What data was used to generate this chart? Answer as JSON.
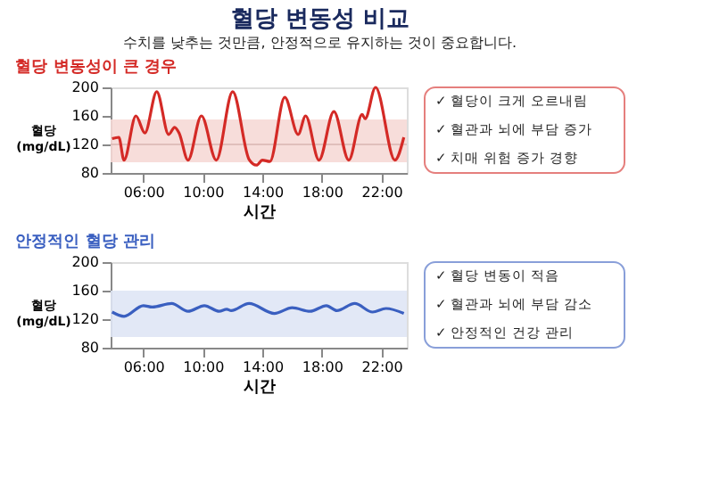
{
  "chart_data": [
    {
      "type": "other",
      "title": "혈당 변동성 비교",
      "subtitle": "수치를 낮추는 것만큼, 안정적으로 유지하는 것이 중요합니다."
    },
    {
      "type": "line",
      "title": "혈당 변동성이 큰 경우",
      "xlabel": "시간",
      "ylabel": "혈당 (mg/dL)",
      "xlim": [
        3.8,
        23.7
      ],
      "ylim": [
        80,
        200
      ],
      "yticks": [
        80,
        120,
        160,
        200
      ],
      "xticks": [
        {
          "value": 6,
          "label": "06:00"
        },
        {
          "value": 10,
          "label": "10:00"
        },
        {
          "value": 14,
          "label": "14:00"
        },
        {
          "value": 18,
          "label": "18:00"
        },
        {
          "value": 22,
          "label": "22:00"
        }
      ],
      "grid": false,
      "marker": "none",
      "line_style": "solid",
      "bands": [
        {
          "axis": "y",
          "from": 95,
          "to": 155,
          "color": "#f6d9d6"
        }
      ],
      "ref_lines": [
        {
          "axis": "y",
          "value": 120,
          "color": "#d9b4b0"
        }
      ],
      "annotations": [
        "✓ 혈당이 크게 오르내림",
        "✓ 혈관과 뇌에 부담 증가",
        "✓ 치매 위험 증가 경향"
      ],
      "series": [
        {
          "color": "#d42a26",
          "x": [
            3.9,
            4.35,
            4.7,
            5.5,
            6.1,
            6.9,
            7.7,
            8.1,
            8.4,
            9.0,
            9.9,
            10.9,
            12.0,
            13.1,
            13.6,
            14.0,
            14.5,
            15.5,
            16.4,
            16.9,
            17.8,
            18.8,
            19.8,
            20.7,
            20.9,
            21.6,
            22.9,
            23.5
          ],
          "values": [
            128,
            130,
            98,
            160,
            136,
            194,
            134,
            144,
            136,
            98,
            160,
            98,
            194,
            99,
            91,
            98,
            96,
            186,
            134,
            160,
            98,
            166,
            98,
            162,
            156,
            200,
            98,
            130
          ]
        }
      ]
    },
    {
      "type": "line",
      "title": "안정적인 혈당 관리",
      "xlabel": "시간",
      "ylabel": "혈당 (mg/dL)",
      "xlim": [
        3.8,
        23.7
      ],
      "ylim": [
        80,
        200
      ],
      "yticks": [
        80,
        120,
        160,
        200
      ],
      "xticks": [
        {
          "value": 6,
          "label": "06:00"
        },
        {
          "value": 10,
          "label": "10:00"
        },
        {
          "value": 14,
          "label": "14:00"
        },
        {
          "value": 18,
          "label": "18:00"
        },
        {
          "value": 22,
          "label": "22:00"
        }
      ],
      "grid": false,
      "marker": "none",
      "line_style": "solid",
      "bands": [
        {
          "axis": "y",
          "from": 95,
          "to": 160,
          "color": "#dfe6f5"
        }
      ],
      "annotations": [
        "✓ 혈당 변동이 적음",
        "✓ 혈관과 뇌에 부담 감소",
        "✓ 안정적인 건강 관리"
      ],
      "series": [
        {
          "color": "#3a5fc0",
          "x": [
            3.9,
            4.7,
            6.0,
            6.6,
            7.9,
            9.0,
            10.1,
            11.1,
            11.6,
            11.9,
            13.1,
            14.8,
            16.0,
            17.2,
            18.3,
            19.0,
            20.2,
            21.4,
            22.3,
            23.5
          ],
          "values": [
            130,
            124,
            139,
            137,
            142,
            131,
            139,
            131,
            134,
            132,
            142,
            128,
            136,
            131,
            139,
            132,
            142,
            130,
            135,
            128
          ]
        }
      ]
    }
  ]
}
